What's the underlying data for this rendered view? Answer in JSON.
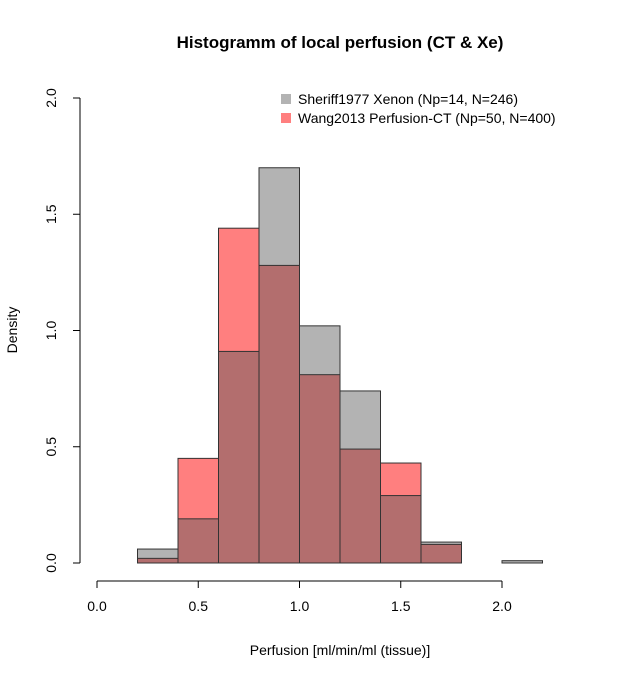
{
  "chart_data": {
    "type": "bar",
    "title": "Histogramm of local perfusion (CT & Xe)",
    "xlabel": "Perfusion [ml/min/ml (tissue)]",
    "ylabel": "Density",
    "xlim": [
      0,
      2.2
    ],
    "ylim": [
      0,
      2.0
    ],
    "x_ticks": [
      "0.0",
      "0.5",
      "1.0",
      "1.5",
      "2.0"
    ],
    "y_ticks": [
      "0.0",
      "0.5",
      "1.0",
      "1.5",
      "2.0"
    ],
    "grid": false,
    "legend_position": "top-right",
    "bin_edges": [
      0.2,
      0.4,
      0.6,
      0.8,
      1.0,
      1.2,
      1.4,
      1.6,
      1.8,
      2.0,
      2.2
    ],
    "series": [
      {
        "name": "Sheriff1977 Xenon (Np=14, N=246)",
        "color": "#b3b3b3",
        "values": [
          0.06,
          0.19,
          0.91,
          1.7,
          1.02,
          0.74,
          0.29,
          0.09,
          0.0,
          0.01
        ]
      },
      {
        "name": "Wang2013 Perfusion-CT (Np=50, N=400)",
        "color": "#ff7f7f",
        "overlap_color": "#b36e6e",
        "values": [
          0.02,
          0.45,
          1.44,
          1.28,
          0.81,
          0.49,
          0.43,
          0.08,
          0.0,
          0.0
        ]
      }
    ]
  }
}
